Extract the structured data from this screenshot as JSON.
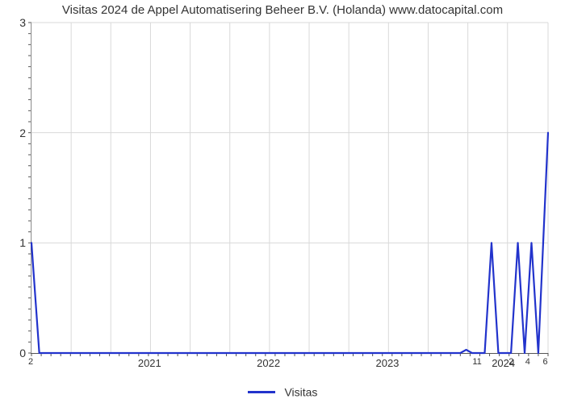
{
  "chart": {
    "type": "line",
    "title": "Visitas 2024 de Appel Automatisering Beheer B.V. (Holanda) www.datocapital.com",
    "title_fontsize": 15,
    "background_color": "#ffffff",
    "grid_color": "#d9d9d9",
    "axis_color": "#555555",
    "tick_color": "#555555",
    "label_color": "#333333",
    "line_color": "#2233cc",
    "line_width": 2.2,
    "legend": {
      "label": "Visitas",
      "position": "bottom-center"
    },
    "y": {
      "lim": [
        0,
        3
      ],
      "ticks": [
        0,
        1,
        2,
        3
      ],
      "tick_labels": [
        "0",
        "1",
        "2",
        "3"
      ],
      "minor_step": 0.1,
      "label_fontsize": 14
    },
    "x": {
      "lim": [
        0,
        53
      ],
      "minor_step": 1,
      "year_ticks": [
        {
          "pos": 0,
          "label": "2"
        },
        {
          "pos": 12.2,
          "label": "2021"
        },
        {
          "pos": 24.4,
          "label": "2022"
        },
        {
          "pos": 36.6,
          "label": "2023"
        },
        {
          "pos": 45.8,
          "label": "11"
        },
        {
          "pos": 48.5,
          "label": "2024"
        },
        {
          "pos": 49.3,
          "label": "2"
        },
        {
          "pos": 51.0,
          "label": "4"
        },
        {
          "pos": 52.8,
          "label": "6"
        }
      ],
      "major_grid_positions": [
        0,
        4.07,
        8.14,
        12.21,
        16.28,
        20.35,
        24.42,
        28.49,
        32.56,
        36.63,
        40.7,
        44.77,
        48.84,
        53
      ],
      "label_fontsize": 13
    },
    "series": [
      {
        "name": "Visitas",
        "color": "#2233cc",
        "points": [
          [
            0,
            1.0
          ],
          [
            0.8,
            0.0
          ],
          [
            44.0,
            0.0
          ],
          [
            44.6,
            0.03
          ],
          [
            45.2,
            0.0
          ],
          [
            46.5,
            0.0
          ],
          [
            47.2,
            1.0
          ],
          [
            47.9,
            0.0
          ],
          [
            49.2,
            0.0
          ],
          [
            49.9,
            1.0
          ],
          [
            50.6,
            0.0
          ],
          [
            51.3,
            1.0
          ],
          [
            52.0,
            0.0
          ],
          [
            53.0,
            2.0
          ]
        ]
      }
    ]
  }
}
